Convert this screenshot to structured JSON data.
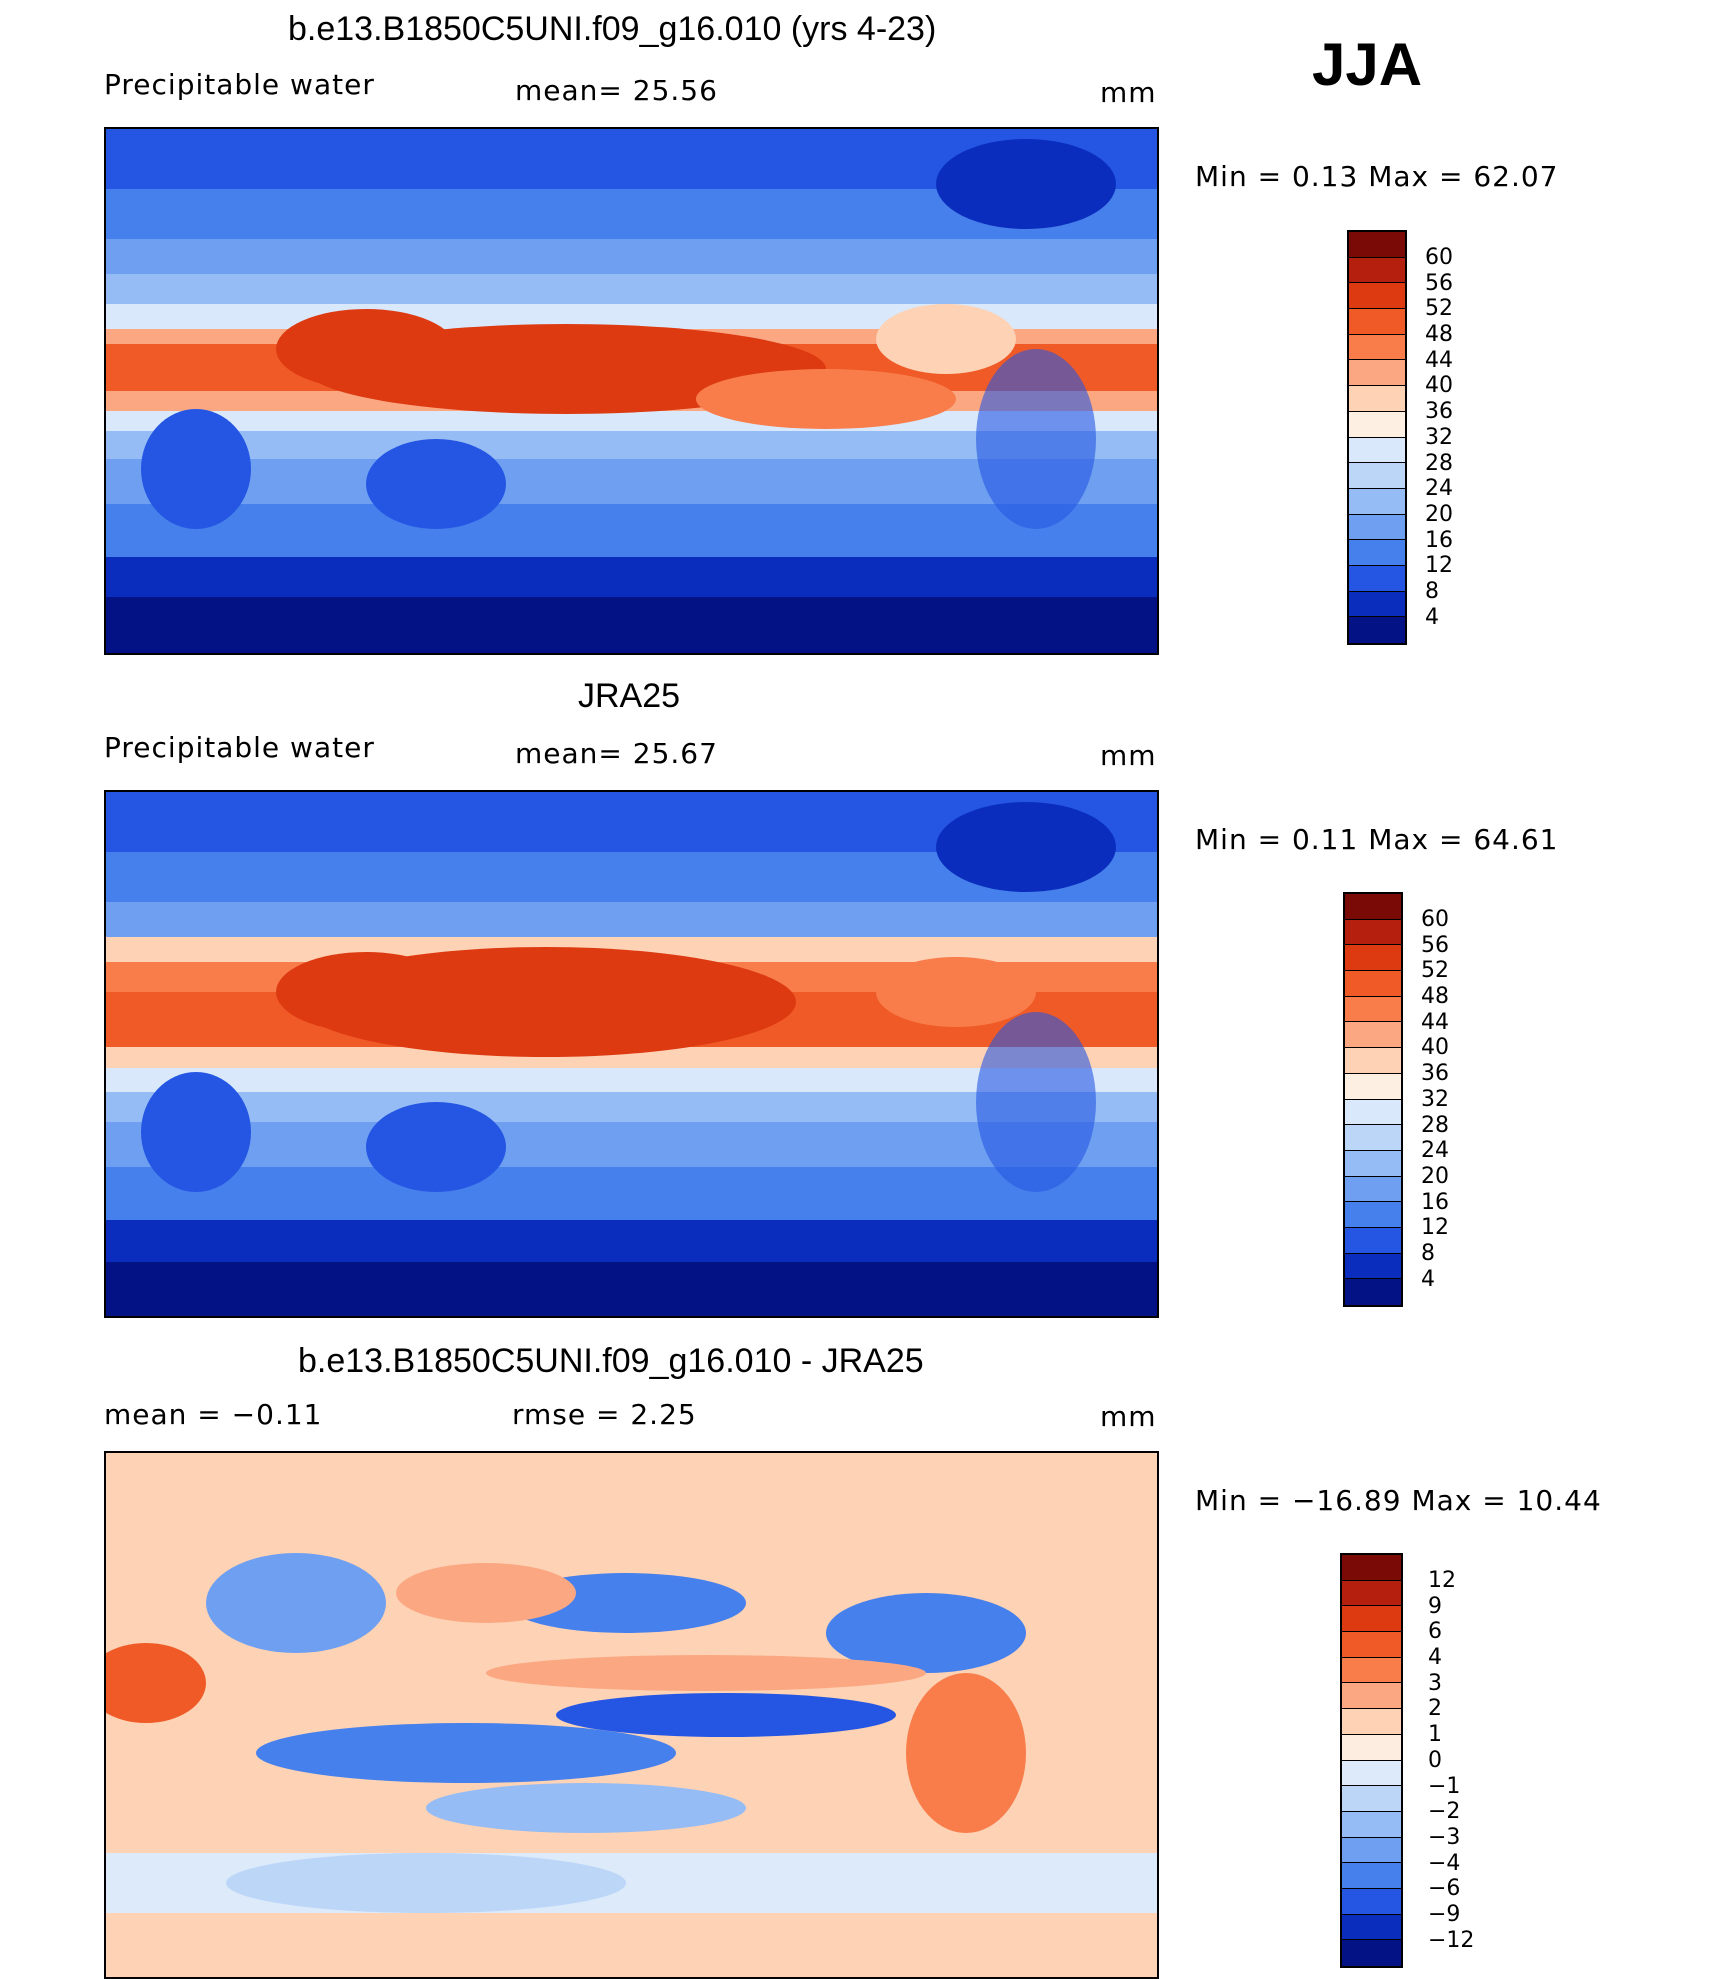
{
  "season": "JJA",
  "panels": [
    {
      "title": "b.e13.B1850C5UNI.f09_g16.010 (yrs 4-23)",
      "left": "Precipitable  water",
      "mid": "mean=   25.56",
      "right": "mm",
      "minmax": "Min  =     0.13  Max  =    62.07",
      "legend": [
        "60",
        "56",
        "52",
        "48",
        "44",
        "40",
        "36",
        "32",
        "28",
        "24",
        "20",
        "16",
        "12",
        "8",
        "4"
      ]
    },
    {
      "title": "JRA25",
      "left": "Precipitable  water",
      "mid": "mean=   25.67",
      "right": "mm",
      "minmax": "Min  =     0.11  Max  =    64.61",
      "legend": [
        "60",
        "56",
        "52",
        "48",
        "44",
        "40",
        "36",
        "32",
        "28",
        "24",
        "20",
        "16",
        "12",
        "8",
        "4"
      ]
    },
    {
      "title": "b.e13.B1850C5UNI.f09_g16.010 - JRA25",
      "left": "mean  =    −0.11",
      "mid": "rmse  =     2.25",
      "right": "mm",
      "minmax": "Min  = −16.89  Max  =    10.44",
      "legend": [
        "12",
        "9",
        "6",
        "4",
        "3",
        "2",
        "1",
        "0",
        "−1",
        "−2",
        "−3",
        "−4",
        "−6",
        "−9",
        "−12"
      ]
    }
  ],
  "colors": {
    "abs_scale": [
      "#7a0a06",
      "#b51f0d",
      "#dd3a12",
      "#f05a26",
      "#f87d4b",
      "#fba882",
      "#fdd2b5",
      "#fdf0e3",
      "#d9e9fb",
      "#bcd6f8",
      "#95bcf5",
      "#6e9ff0",
      "#4680ec",
      "#2556e3",
      "#0a2dbd",
      "#031284"
    ],
    "diff_scale": [
      "#7a0a06",
      "#b51f0d",
      "#dd3a12",
      "#f05a26",
      "#f87d4b",
      "#fba882",
      "#fdd2b5",
      "#fdece0",
      "#dceafa",
      "#bcd6f8",
      "#95bcf5",
      "#6e9ff0",
      "#4680ec",
      "#2556e3",
      "#0a2dbd",
      "#031284"
    ]
  }
}
